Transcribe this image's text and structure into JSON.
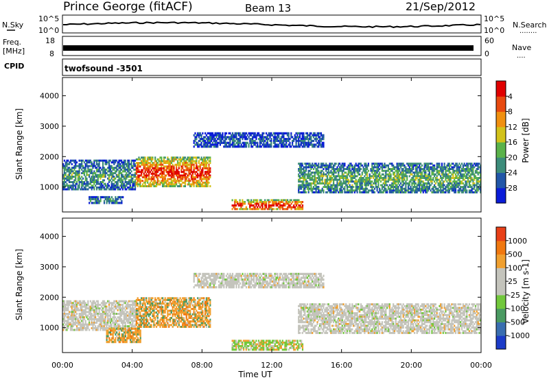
{
  "header": {
    "station": "Prince George (fitACF)",
    "beam": "Beam 13",
    "date": "21/Sep/2012"
  },
  "aux": {
    "nsky_label": "N.Sky",
    "nsearch_label": "N.Search",
    "nsearch_dots": "........",
    "freq_label": "Freq.",
    "freq_unit": "[MHz]",
    "nave_label": "Nave",
    "nave_dots": "....",
    "cpid_label": "CPID",
    "cpid_value": "twofsound -3501",
    "noise_ticks_left": [
      "10^5",
      "10^0"
    ],
    "noise_ticks_right": [
      "10^5",
      "10^0"
    ],
    "freq_ticks": [
      "18",
      "8"
    ],
    "nave_ticks": [
      "60",
      "0"
    ]
  },
  "chart_data": [
    {
      "type": "heatmap",
      "name": "power",
      "ylabel": "Slant Range [km]",
      "xlabel": "",
      "ylim": [
        180,
        4600
      ],
      "y_ticks": [
        1000,
        2000,
        3000,
        4000
      ],
      "xlim_hours": [
        0,
        24
      ],
      "colorbar": {
        "label": "Power [dB]",
        "ticks": [
          "4",
          "8",
          "12",
          "16",
          "20",
          "24",
          "28"
        ],
        "colors": [
          "#0a1cd8",
          "#2156a8",
          "#3c8c7a",
          "#5ab24a",
          "#d2c21a",
          "#f09010",
          "#e84a10",
          "#e00000"
        ]
      },
      "regions": [
        {
          "t0": 0.0,
          "t1": 4.2,
          "r0": 900,
          "r1": 1900,
          "level": 0.35
        },
        {
          "t0": 4.2,
          "t1": 8.5,
          "r0": 1000,
          "r1": 2000,
          "level": 0.85
        },
        {
          "t0": 9.7,
          "t1": 13.8,
          "r0": 250,
          "r1": 600,
          "level": 0.9
        },
        {
          "t0": 13.5,
          "t1": 24.0,
          "r0": 800,
          "r1": 1800,
          "level": 0.4
        },
        {
          "t0": 1.5,
          "t1": 3.5,
          "r0": 450,
          "r1": 700,
          "level": 0.3
        },
        {
          "t0": 7.5,
          "t1": 15.0,
          "r0": 2300,
          "r1": 2800,
          "level": 0.2
        }
      ]
    },
    {
      "type": "heatmap",
      "name": "velocity",
      "ylabel": "Slant Range [km]",
      "xlabel": "Time UT",
      "ylim": [
        180,
        4600
      ],
      "y_ticks": [
        1000,
        2000,
        3000,
        4000
      ],
      "xlim_hours": [
        0,
        24
      ],
      "x_ticks": [
        "00:00",
        "04:00",
        "08:00",
        "12:00",
        "16:00",
        "20:00",
        "00:00"
      ],
      "colorbar": {
        "label": "Velocity [m s-1]",
        "ticks": [
          "1000",
          "500",
          "100",
          "25",
          "-25",
          "-100",
          "-500",
          "-1000"
        ],
        "colors": [
          "#1c3cc8",
          "#3a6eb0",
          "#4a9a62",
          "#72c83c",
          "#c4c4bc",
          "#c4c4bc",
          "#f0a030",
          "#f07810",
          "#e84018"
        ]
      },
      "regions": [
        {
          "t0": 0.0,
          "t1": 4.2,
          "r0": 900,
          "r1": 1900,
          "kind": "grey"
        },
        {
          "t0": 4.2,
          "t1": 8.5,
          "r0": 1000,
          "r1": 2000,
          "kind": "neg"
        },
        {
          "t0": 9.7,
          "t1": 13.8,
          "r0": 250,
          "r1": 600,
          "kind": "pos"
        },
        {
          "t0": 13.5,
          "t1": 24.0,
          "r0": 800,
          "r1": 1800,
          "kind": "grey"
        },
        {
          "t0": 2.5,
          "t1": 4.5,
          "r0": 500,
          "r1": 1000,
          "kind": "neg"
        },
        {
          "t0": 7.5,
          "t1": 15.0,
          "r0": 2300,
          "r1": 2800,
          "kind": "grey"
        }
      ]
    }
  ]
}
